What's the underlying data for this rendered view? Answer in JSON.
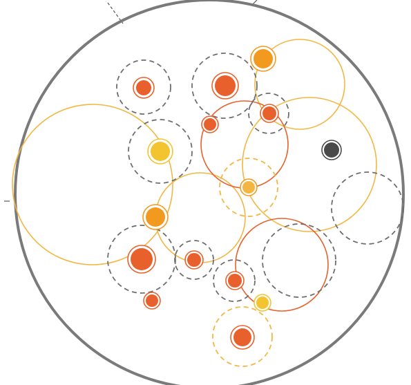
{
  "colors": {
    "boundary": "#7a7a7a",
    "orange_red": "#e8612c",
    "orange": "#f29a1f",
    "yellow": "#f4c430",
    "light_orange": "#f4b642",
    "dark": "#4a4a4a",
    "dashed_gray": "#6e6e6e",
    "background": "#ffffff"
  },
  "legend": []
}
